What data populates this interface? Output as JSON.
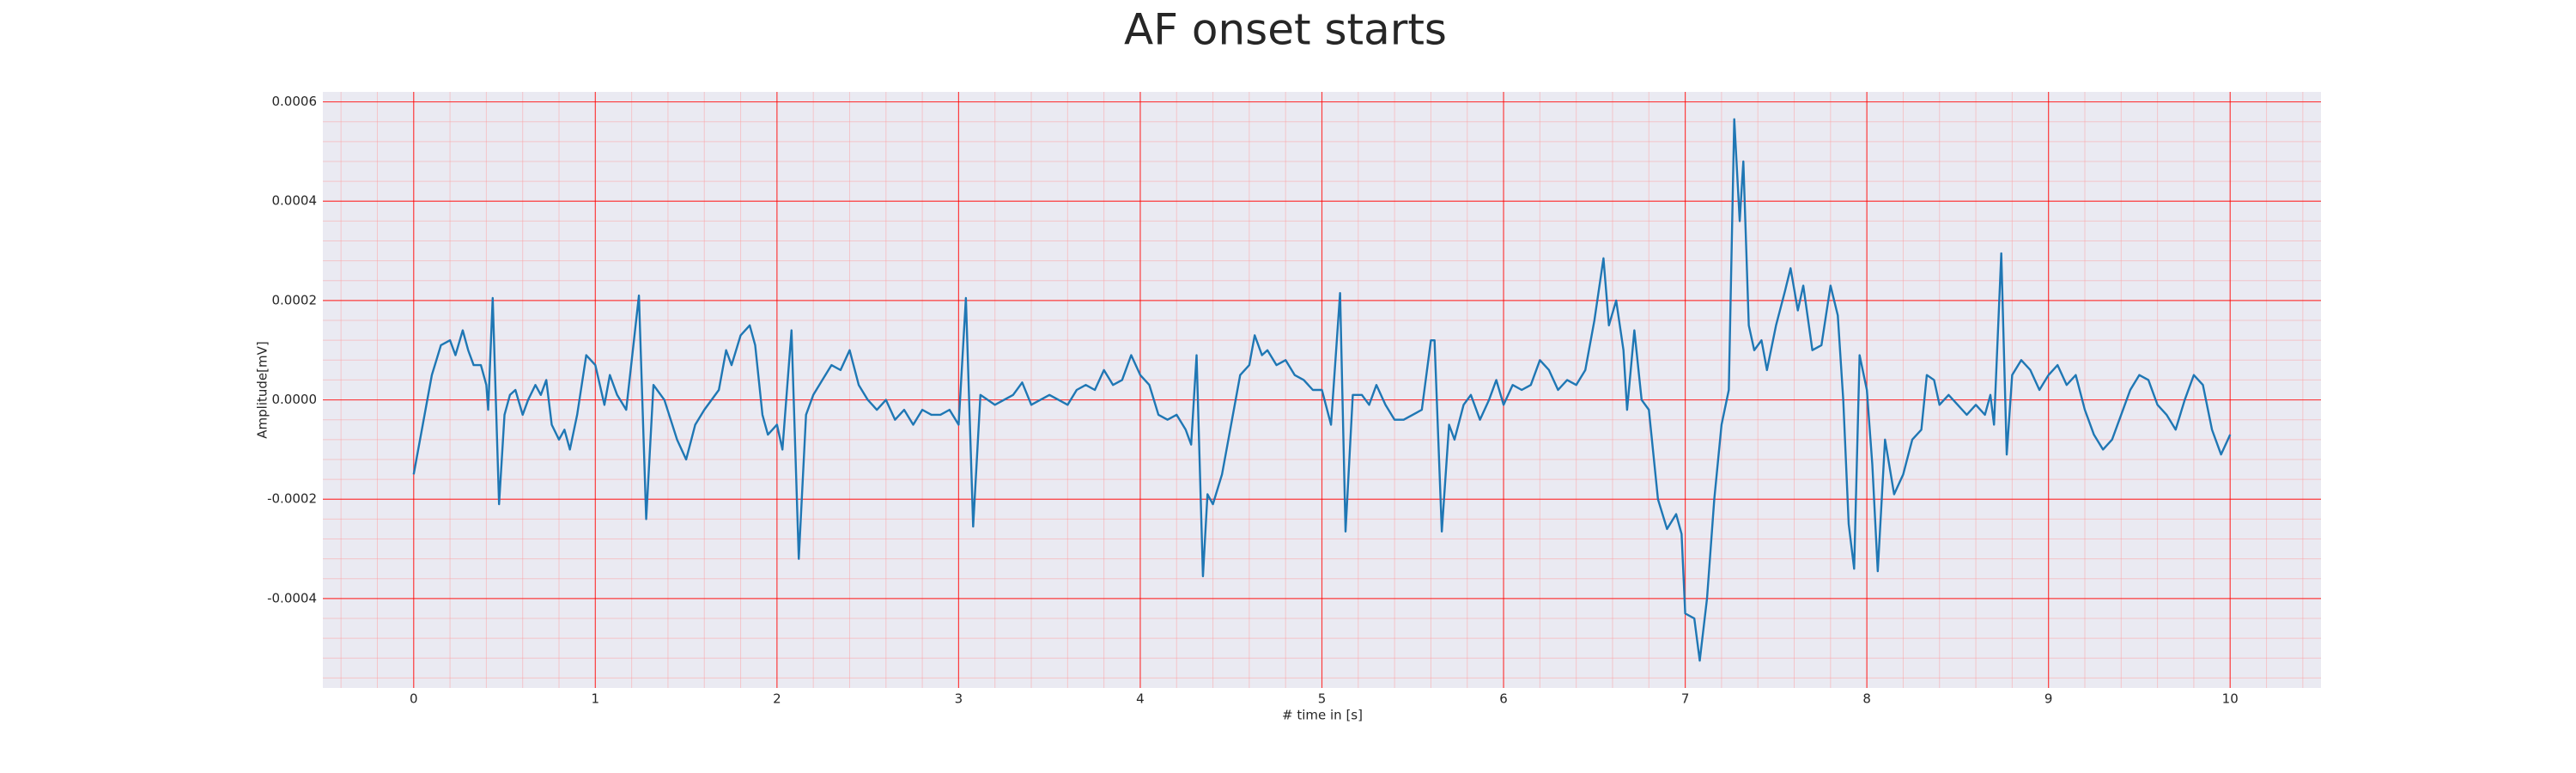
{
  "chart_data": {
    "type": "line",
    "title": "AF onset starts",
    "xlabel": "# time in [s]",
    "ylabel": "Amplitude[mV]",
    "color": "#1f77b4",
    "grid": true,
    "minor_grid": true,
    "xlim": [
      -0.5,
      10.5
    ],
    "ylim": [
      -0.00058,
      0.00062
    ],
    "xticks": [
      0,
      1,
      2,
      3,
      4,
      5,
      6,
      7,
      8,
      9,
      10
    ],
    "yticks": [
      -0.0004,
      -0.0002,
      {
        "value": 0,
        "label": "0.0000"
      },
      0.0002,
      0.0004,
      0.0006
    ],
    "x": [
      0,
      0.05,
      0.1,
      0.15,
      0.2,
      0.23,
      0.27,
      0.3,
      0.33,
      0.37,
      0.4,
      0.41,
      0.435,
      0.47,
      0.5,
      0.53,
      0.56,
      0.6,
      0.63,
      0.67,
      0.7,
      0.73,
      0.76,
      0.8,
      0.83,
      0.86,
      0.9,
      0.95,
      1.0,
      1.05,
      1.08,
      1.12,
      1.17,
      1.24,
      1.28,
      1.32,
      1.38,
      1.45,
      1.5,
      1.55,
      1.6,
      1.68,
      1.72,
      1.75,
      1.8,
      1.85,
      1.88,
      1.92,
      1.95,
      2.0,
      2.03,
      2.08,
      2.12,
      2.16,
      2.2,
      2.25,
      2.3,
      2.35,
      2.4,
      2.45,
      2.5,
      2.55,
      2.6,
      2.65,
      2.7,
      2.75,
      2.8,
      2.85,
      2.9,
      2.95,
      3.0,
      3.04,
      3.08,
      3.12,
      3.2,
      3.3,
      3.35,
      3.4,
      3.5,
      3.6,
      3.65,
      3.7,
      3.75,
      3.8,
      3.85,
      3.9,
      3.95,
      4.0,
      4.05,
      4.1,
      4.15,
      4.2,
      4.25,
      4.28,
      4.31,
      4.345,
      4.37,
      4.4,
      4.45,
      4.5,
      4.55,
      4.6,
      4.63,
      4.67,
      4.7,
      4.75,
      4.8,
      4.85,
      4.9,
      4.95,
      5.0,
      5.05,
      5.1,
      5.13,
      5.17,
      5.22,
      5.26,
      5.3,
      5.35,
      5.4,
      5.45,
      5.5,
      5.55,
      5.6,
      5.62,
      5.66,
      5.7,
      5.73,
      5.78,
      5.82,
      5.87,
      5.92,
      5.96,
      6.0,
      6.05,
      6.1,
      6.15,
      6.2,
      6.25,
      6.3,
      6.35,
      6.4,
      6.45,
      6.5,
      6.55,
      6.58,
      6.62,
      6.66,
      6.68,
      6.72,
      6.76,
      6.8,
      6.85,
      6.9,
      6.95,
      6.98,
      7.0,
      7.05,
      7.08,
      7.12,
      7.16,
      7.2,
      7.24,
      7.27,
      7.3,
      7.32,
      7.35,
      7.38,
      7.42,
      7.45,
      7.5,
      7.55,
      7.58,
      7.62,
      7.65,
      7.7,
      7.75,
      7.8,
      7.84,
      7.87,
      7.9,
      7.93,
      7.96,
      8.0,
      8.03,
      8.06,
      8.1,
      8.15,
      8.2,
      8.25,
      8.3,
      8.33,
      8.37,
      8.4,
      8.45,
      8.5,
      8.55,
      8.6,
      8.65,
      8.68,
      8.7,
      8.74,
      8.77,
      8.8,
      8.85,
      8.9,
      8.95,
      9.0,
      9.05,
      9.1,
      9.15,
      9.2,
      9.25,
      9.3,
      9.35,
      9.4,
      9.45,
      9.5,
      9.55,
      9.6,
      9.65,
      9.7,
      9.75,
      9.8,
      9.85,
      9.9,
      9.95,
      10.0
    ],
    "values": [
      -0.00015,
      -5e-05,
      5e-05,
      0.00011,
      0.00012,
      9e-05,
      0.00014,
      0.0001,
      7e-05,
      7e-05,
      3e-05,
      -2e-05,
      0.000205,
      -0.00021,
      -3e-05,
      1e-05,
      2e-05,
      -3e-05,
      0,
      3e-05,
      1e-05,
      4e-05,
      -5e-05,
      -8e-05,
      -6e-05,
      -0.0001,
      -3e-05,
      9e-05,
      7e-05,
      -1e-05,
      5e-05,
      1e-05,
      -2e-05,
      0.00021,
      -0.00024,
      3e-05,
      0,
      -8e-05,
      -0.00012,
      -5e-05,
      -2e-05,
      2e-05,
      0.0001,
      7e-05,
      0.00013,
      0.00015,
      0.00011,
      -3e-05,
      -7e-05,
      -5e-05,
      -0.0001,
      0.00014,
      -0.00032,
      -3e-05,
      1e-05,
      4e-05,
      7e-05,
      6e-05,
      0.0001,
      3e-05,
      0,
      -2e-05,
      0,
      -4e-05,
      -2e-05,
      -5e-05,
      -2e-05,
      -3e-05,
      -3e-05,
      -2e-05,
      -5e-05,
      0.000205,
      -0.000255,
      1e-05,
      -1e-05,
      1e-05,
      3.5e-05,
      -1e-05,
      1e-05,
      -1e-05,
      2e-05,
      3e-05,
      2e-05,
      6e-05,
      3e-05,
      4e-05,
      9e-05,
      5e-05,
      3e-05,
      -3e-05,
      -4e-05,
      -3e-05,
      -6e-05,
      -9e-05,
      9e-05,
      -0.000355,
      -0.00019,
      -0.00021,
      -0.00015,
      -5e-05,
      5e-05,
      7e-05,
      0.00013,
      9e-05,
      0.0001,
      7e-05,
      8e-05,
      5e-05,
      4e-05,
      2e-05,
      2e-05,
      -5e-05,
      0.000215,
      -0.000265,
      1e-05,
      1e-05,
      -1e-05,
      3e-05,
      -1e-05,
      -4e-05,
      -4e-05,
      -3e-05,
      -2e-05,
      0.00012,
      0.00012,
      -0.000265,
      -5e-05,
      -8e-05,
      -1e-05,
      1e-05,
      -4e-05,
      0,
      4e-05,
      -1e-05,
      3e-05,
      2e-05,
      3e-05,
      8e-05,
      6e-05,
      2e-05,
      4e-05,
      3e-05,
      6e-05,
      0.00016,
      0.000285,
      0.00015,
      0.0002,
      0.0001,
      -2e-05,
      0.00014,
      0,
      -2e-05,
      -0.0002,
      -0.00026,
      -0.00023,
      -0.00027,
      -0.00043,
      -0.00044,
      -0.000525,
      -0.0004,
      -0.0002,
      -5e-05,
      2e-05,
      0.000565,
      0.00036,
      0.00048,
      0.00015,
      0.0001,
      0.00012,
      6e-05,
      0.00015,
      0.00022,
      0.000265,
      0.00018,
      0.00023,
      0.0001,
      0.00011,
      0.00023,
      0.00017,
      0,
      -0.00025,
      -0.00034,
      9e-05,
      2e-05,
      -0.00013,
      -0.000345,
      -8e-05,
      -0.00019,
      -0.00015,
      -8e-05,
      -6e-05,
      5e-05,
      4e-05,
      -1e-05,
      1e-05,
      -1e-05,
      -3e-05,
      -1e-05,
      -3e-05,
      1e-05,
      -5e-05,
      0.000295,
      -0.00011,
      5e-05,
      8e-05,
      6e-05,
      2e-05,
      5e-05,
      7e-05,
      3e-05,
      5e-05,
      -2e-05,
      -7e-05,
      -0.0001,
      -8e-05,
      -3e-05,
      2e-05,
      5e-05,
      4e-05,
      -1e-05,
      -3e-05,
      -6e-05,
      0,
      5e-05,
      3e-05,
      -6e-05,
      -0.00011,
      -7e-05
    ]
  }
}
